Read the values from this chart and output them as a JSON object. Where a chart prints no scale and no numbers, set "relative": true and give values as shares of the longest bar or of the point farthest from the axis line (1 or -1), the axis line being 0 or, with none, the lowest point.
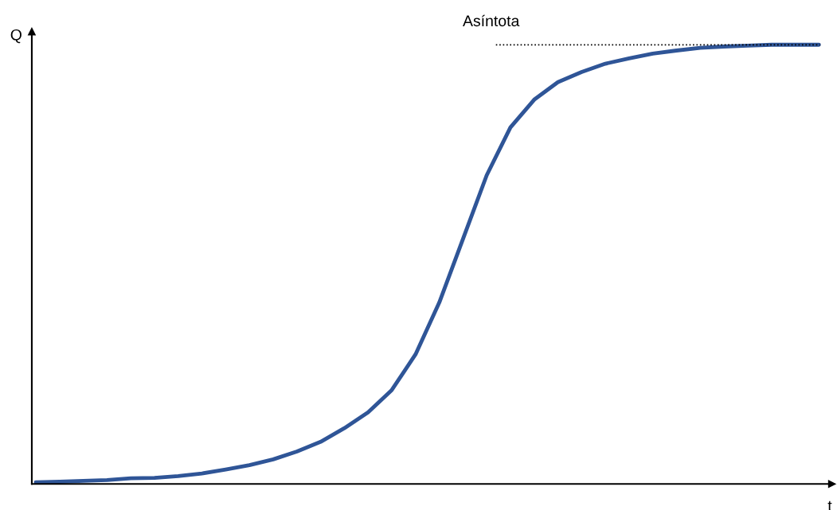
{
  "chart_data": {
    "type": "line",
    "relative": true,
    "xlabel": "t",
    "ylabel": "Q",
    "categories": [
      null,
      null,
      null,
      null,
      null,
      null,
      null,
      null,
      null,
      null,
      null,
      null,
      null,
      null,
      null,
      null,
      null,
      null,
      null,
      null,
      null,
      null,
      null,
      null,
      null,
      null,
      null,
      null,
      null,
      null,
      null,
      null,
      null,
      null
    ],
    "series": [
      {
        "color": "#2f5597",
        "values": [
          0.004,
          0.005,
          0.007,
          0.009,
          0.013,
          0.014,
          0.018,
          0.024,
          0.033,
          0.043,
          0.056,
          0.074,
          0.096,
          0.127,
          0.163,
          0.214,
          0.295,
          0.413,
          0.558,
          0.703,
          0.812,
          0.875,
          0.915,
          0.938,
          0.957,
          0.969,
          0.98,
          0.987,
          0.993,
          0.996,
          0.998,
          1.0,
          1.0,
          1.0
        ]
      }
    ],
    "ref_lines": [
      {
        "axis": "y",
        "value": 1.0,
        "label": "Asíntota",
        "color": "#000000",
        "line_style": "dotted"
      }
    ],
    "marker": "none",
    "line_style": "solid"
  }
}
